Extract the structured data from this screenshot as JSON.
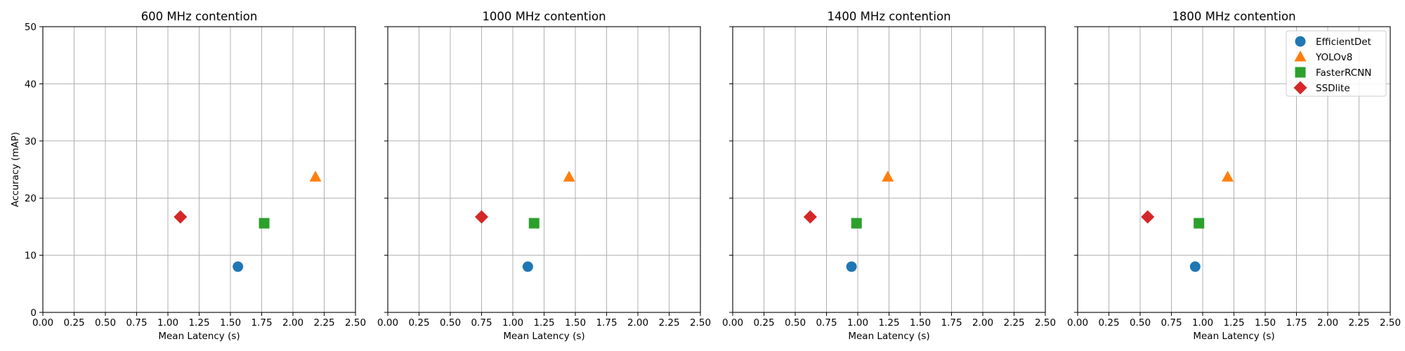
{
  "chart_data": {
    "type": "scatter",
    "xlabel": "Mean Latency (s)",
    "ylabel": "Accuracy (mAP)",
    "xlim": [
      0,
      2.5
    ],
    "ylim": [
      0,
      50
    ],
    "xticks": [
      "0.00",
      "0.25",
      "0.50",
      "0.75",
      "1.00",
      "1.25",
      "1.50",
      "1.75",
      "2.00",
      "2.25",
      "2.50"
    ],
    "yticks": [
      "0",
      "10",
      "20",
      "30",
      "40",
      "50"
    ],
    "grid": true,
    "legend_position": "top-right of last panel",
    "series_styles": [
      {
        "name": "EfficientDet",
        "marker": "circle",
        "color": "#1f77b4"
      },
      {
        "name": "YOLOv8",
        "marker": "triangle",
        "color": "#ff7f0e"
      },
      {
        "name": "FasterRCNN",
        "marker": "square",
        "color": "#2ca02c"
      },
      {
        "name": "SSDlite",
        "marker": "diamond",
        "color": "#d62728"
      }
    ],
    "panels": [
      {
        "title": "600 MHz contention",
        "points": [
          {
            "series": "EfficientDet",
            "x": 1.56,
            "y": 8.0
          },
          {
            "series": "YOLOv8",
            "x": 2.18,
            "y": 23.7
          },
          {
            "series": "FasterRCNN",
            "x": 1.77,
            "y": 15.6
          },
          {
            "series": "SSDlite",
            "x": 1.1,
            "y": 16.7
          }
        ]
      },
      {
        "title": "1000 MHz contention",
        "points": [
          {
            "series": "EfficientDet",
            "x": 1.12,
            "y": 8.0
          },
          {
            "series": "YOLOv8",
            "x": 1.45,
            "y": 23.7
          },
          {
            "series": "FasterRCNN",
            "x": 1.17,
            "y": 15.6
          },
          {
            "series": "SSDlite",
            "x": 0.75,
            "y": 16.7
          }
        ]
      },
      {
        "title": "1400 MHz contention",
        "points": [
          {
            "series": "EfficientDet",
            "x": 0.95,
            "y": 8.0
          },
          {
            "series": "YOLOv8",
            "x": 1.24,
            "y": 23.7
          },
          {
            "series": "FasterRCNN",
            "x": 0.99,
            "y": 15.6
          },
          {
            "series": "SSDlite",
            "x": 0.62,
            "y": 16.7
          }
        ]
      },
      {
        "title": "1800 MHz contention",
        "points": [
          {
            "series": "EfficientDet",
            "x": 0.94,
            "y": 8.0
          },
          {
            "series": "YOLOv8",
            "x": 1.2,
            "y": 23.7
          },
          {
            "series": "FasterRCNN",
            "x": 0.97,
            "y": 15.6
          },
          {
            "series": "SSDlite",
            "x": 0.56,
            "y": 16.7
          }
        ]
      }
    ]
  }
}
